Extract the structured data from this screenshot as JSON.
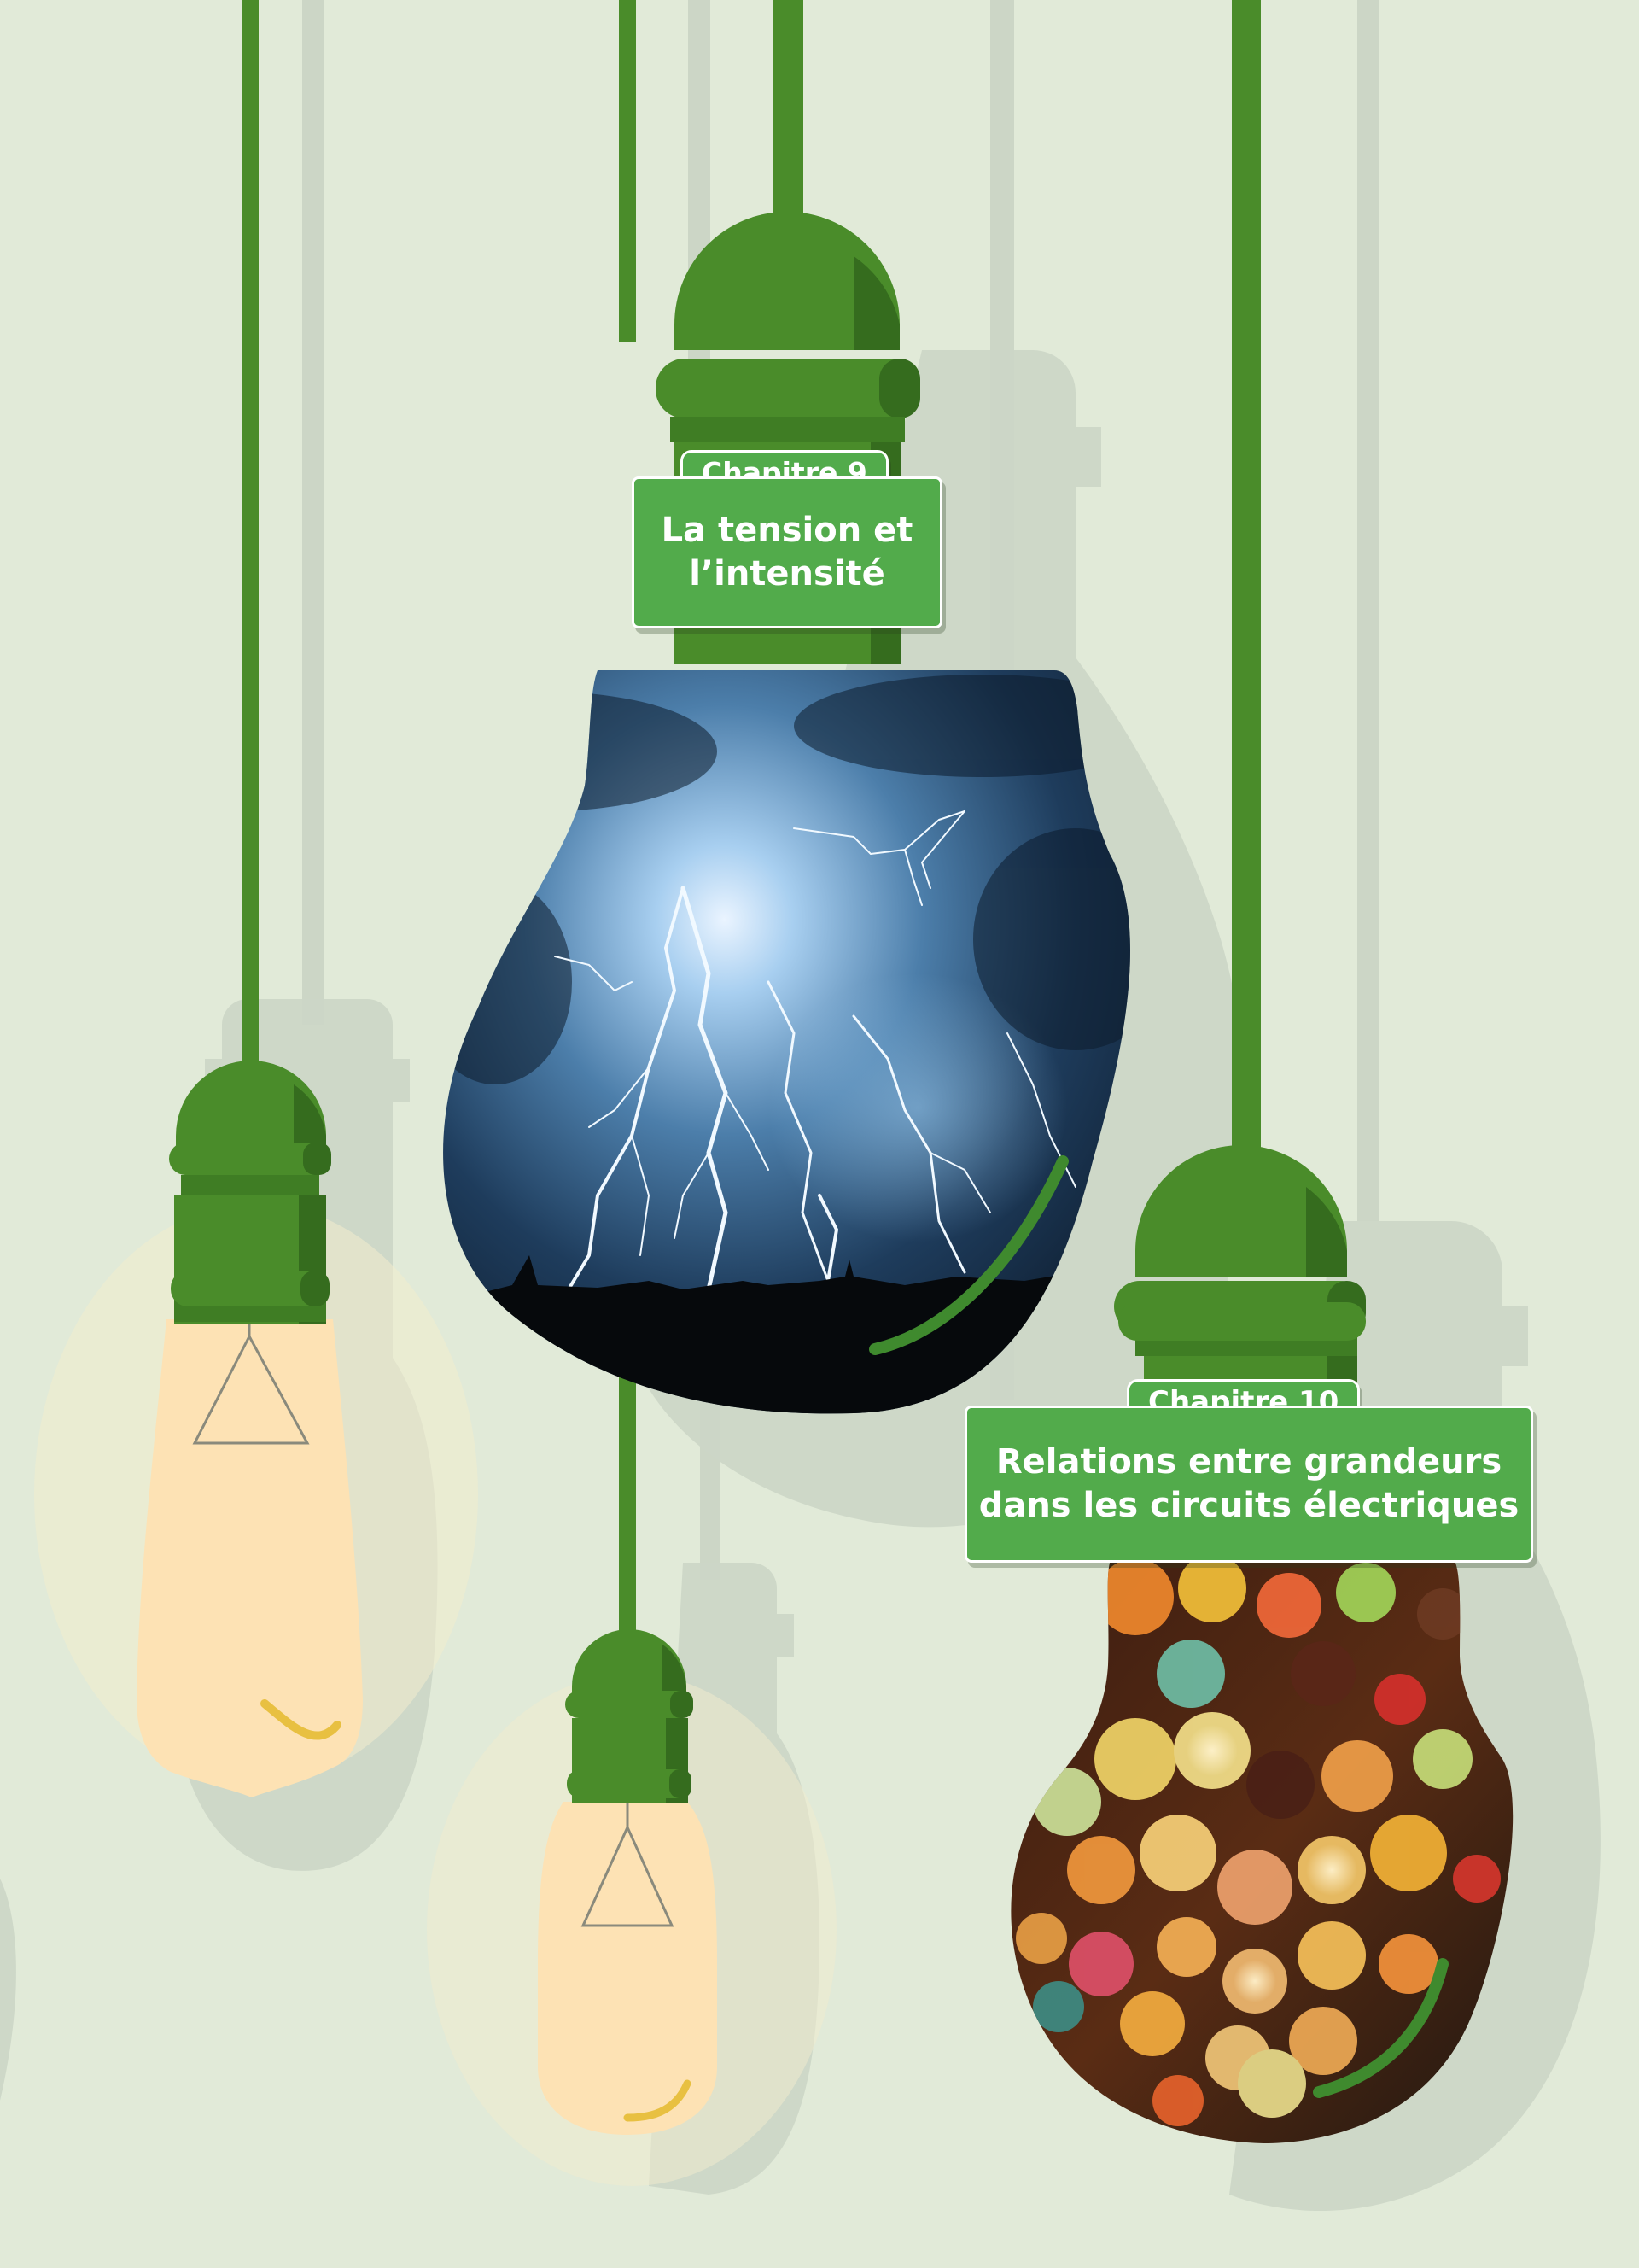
{
  "chapters": [
    {
      "label": "Chapitre 9",
      "title_lines": [
        "La tension et",
        "l’intensité"
      ],
      "photo_subject": "lightning storm"
    },
    {
      "label": "Chapitre 10",
      "title_lines": [
        "Relations entre grandeurs",
        "dans les circuits électriques"
      ],
      "photo_subject": "colorful string lights"
    }
  ],
  "colors": {
    "background": "#e1ead8",
    "socket_green": "#4a8c2a",
    "socket_dark": "#356c1e",
    "label_green": "#52ab4b",
    "bulb_glass": "#fde2b4",
    "filament": "#e8c041",
    "shadow": "#c8d2c2"
  },
  "icons": [
    "hanging-bulb-icon",
    "filament-icon",
    "lightning-photo",
    "string-lights-photo"
  ]
}
